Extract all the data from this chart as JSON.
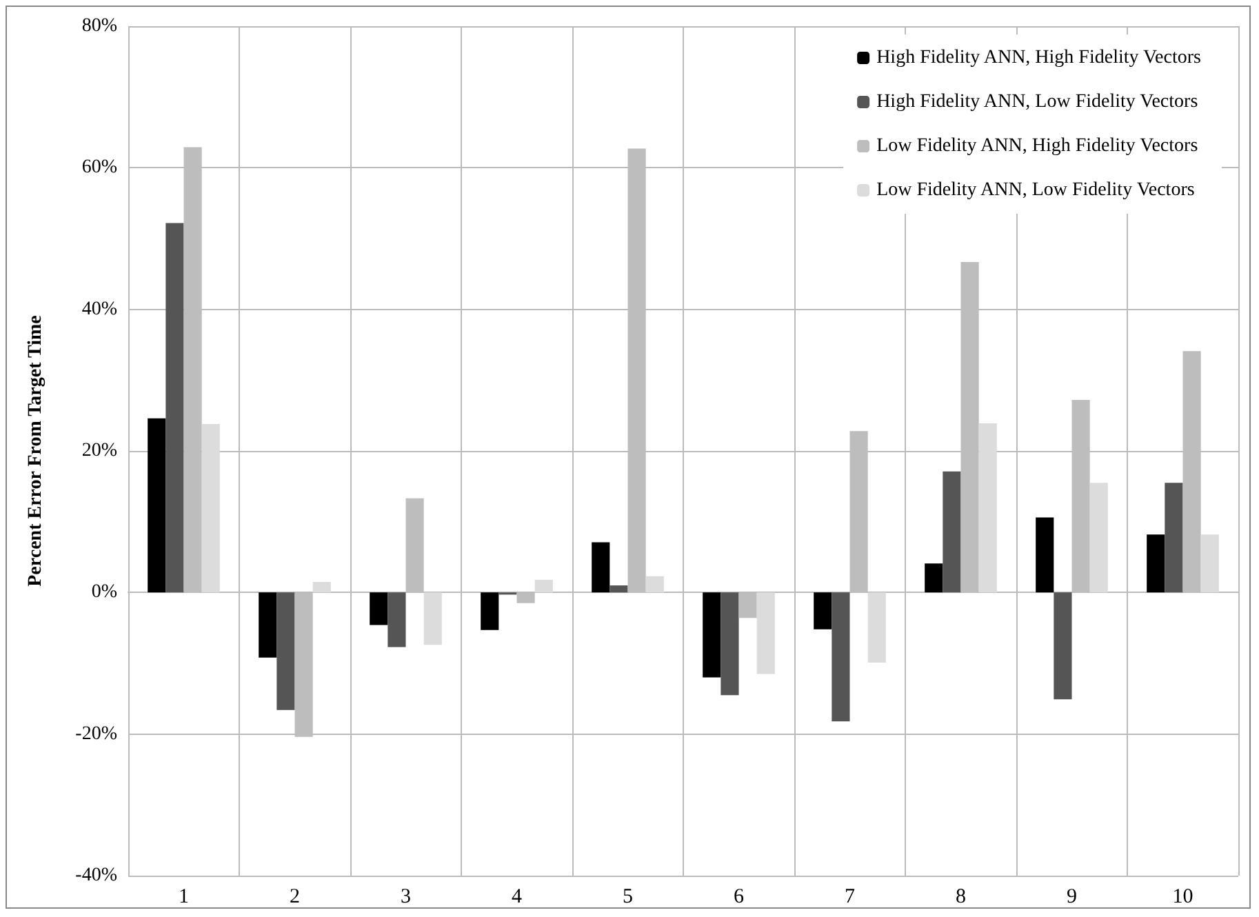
{
  "chart_data": {
    "type": "bar",
    "ylabel": "Percent Error From Target Time",
    "categories": [
      "1",
      "2",
      "3",
      "4",
      "5",
      "6",
      "7",
      "8",
      "9",
      "10"
    ],
    "series": [
      {
        "name": "High Fidelity ANN, High Fidelity Vectors",
        "color": "#000000",
        "values": [
          24.6,
          -9.2,
          -4.6,
          -5.3,
          7.1,
          -12.0,
          -5.2,
          4.1,
          10.6,
          8.2
        ]
      },
      {
        "name": "High Fidelity ANN, Low Fidelity Vectors",
        "color": "#555555",
        "values": [
          52.2,
          -16.6,
          -7.7,
          -0.3,
          1.0,
          -14.5,
          -18.2,
          17.1,
          -15.1,
          15.5
        ]
      },
      {
        "name": "Low Fidelity ANN, High Fidelity Vectors",
        "color": "#bdbdbd",
        "values": [
          62.9,
          -20.4,
          13.3,
          -1.5,
          62.7,
          -3.6,
          22.8,
          46.7,
          27.2,
          34.1
        ]
      },
      {
        "name": "Low Fidelity ANN, Low Fidelity Vectors",
        "color": "#dcdcdc",
        "values": [
          23.8,
          1.5,
          -7.4,
          1.8,
          2.3,
          -11.5,
          -9.9,
          23.9,
          15.5,
          8.2
        ]
      }
    ],
    "ylim": [
      -40,
      80
    ],
    "yticks": [
      {
        "value": -40,
        "label": "-40%"
      },
      {
        "value": -20,
        "label": "-20%"
      },
      {
        "value": 0,
        "label": "0%"
      },
      {
        "value": 20,
        "label": "20%"
      },
      {
        "value": 40,
        "label": "40%"
      },
      {
        "value": 60,
        "label": "60%"
      },
      {
        "value": 80,
        "label": "80%"
      }
    ],
    "grid": true,
    "legend": "top right"
  }
}
